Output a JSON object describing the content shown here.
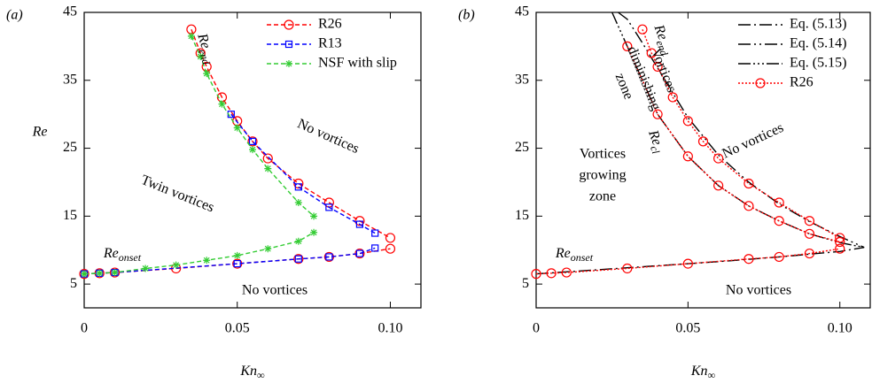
{
  "chart_data": [
    {
      "type": "line",
      "panel": "(a)",
      "x_label": {
        "text": "Kn",
        "sub": "∞"
      },
      "y_label": "Re",
      "xlim": [
        0,
        0.11
      ],
      "ylim": [
        1.5,
        45
      ],
      "xticks": [
        0,
        0.05,
        {
          "value": 0.1,
          "label": "0.10"
        }
      ],
      "yticks": [
        5,
        15,
        25,
        35,
        45
      ],
      "legend": "top-right",
      "series": [
        {
          "name": "R26",
          "color": "#ff0000",
          "marker": "circle",
          "dash": "5 3",
          "x": [
            0,
            0.005,
            0.01,
            0.03,
            0.05,
            0.07,
            0.08,
            0.09,
            0.1,
            null,
            0.035,
            0.038,
            0.04,
            0.045,
            0.05,
            0.055,
            0.06,
            0.07,
            0.08,
            0.09,
            0.1
          ],
          "values": [
            6.5,
            6.6,
            6.7,
            7.3,
            8.0,
            8.7,
            9.0,
            9.5,
            10.2,
            null,
            42.5,
            39,
            37,
            32.5,
            29,
            26,
            23.5,
            19.8,
            17,
            14.3,
            11.8
          ]
        },
        {
          "name": "R13",
          "color": "#0000ff",
          "marker": "square",
          "dash": "5 3",
          "x": [
            0,
            0.005,
            0.01,
            0.05,
            0.07,
            0.08,
            0.09,
            0.095,
            null,
            0.048,
            0.055,
            0.07,
            0.08,
            0.09,
            0.095
          ],
          "values": [
            6.5,
            6.6,
            6.7,
            8.0,
            8.7,
            9.0,
            9.5,
            10.3,
            null,
            30,
            26,
            19.3,
            16.3,
            13.8,
            12.5
          ]
        },
        {
          "name": "NSF with slip",
          "color": "#33cc33",
          "marker": "star",
          "dash": "5 3",
          "x": [
            0,
            0.005,
            0.01,
            0.02,
            0.03,
            0.04,
            0.05,
            0.06,
            0.07,
            0.075,
            null,
            0.035,
            0.038,
            0.04,
            0.045,
            0.05,
            0.055,
            0.06,
            0.07,
            0.075
          ],
          "values": [
            6.5,
            6.6,
            6.7,
            7.3,
            7.8,
            8.5,
            9.2,
            10.2,
            11.3,
            12.6,
            null,
            41.5,
            38.5,
            36,
            31.5,
            28,
            24.8,
            22,
            17,
            15
          ]
        }
      ],
      "annotations": [
        {
          "text": "Twin vortices",
          "color": "#ff0000"
        },
        {
          "text": "No vortices",
          "color": "#0000ff"
        },
        {
          "text": "No vortices",
          "color": "#0000ff"
        },
        {
          "text": "Re",
          "sub": "end",
          "color": "#000000"
        },
        {
          "text": "Re",
          "sub": "onset",
          "color": "#000000"
        }
      ]
    },
    {
      "type": "line",
      "panel": "(b)",
      "x_label": {
        "text": "Kn",
        "sub": "∞"
      },
      "xlim": [
        0,
        0.11
      ],
      "ylim": [
        1.5,
        45
      ],
      "xticks": [
        0,
        0.05,
        {
          "value": 0.1,
          "label": "0.10"
        }
      ],
      "yticks": [
        5,
        15,
        25,
        35,
        45
      ],
      "legend": "top-right",
      "series": [
        {
          "name": "Eq. (5.13)",
          "color": "#000000",
          "marker": "none",
          "dash": "14 4 2 4",
          "x": [
            0,
            0.02,
            0.04,
            0.06,
            0.08,
            0.1,
            0.108
          ],
          "values": [
            6.5,
            7.1,
            7.7,
            8.3,
            9.0,
            9.8,
            10.4
          ]
        },
        {
          "name": "Eq. (5.14)",
          "color": "#000000",
          "marker": "none",
          "dash": "14 4 2 4 2 4",
          "x": [
            0.027,
            0.03,
            0.035,
            0.04,
            0.05,
            0.06,
            0.07,
            0.08,
            0.09,
            0.1,
            0.108
          ],
          "values": [
            45,
            44,
            40.5,
            36.8,
            29.5,
            24,
            20,
            16.8,
            14.2,
            12,
            10.4
          ]
        },
        {
          "name": "Eq. (5.15)",
          "color": "#000000",
          "marker": "none",
          "dash": "14 3 2 3 2 3 2 3",
          "x": [
            0.025,
            0.03,
            0.04,
            0.05,
            0.06,
            0.07,
            0.08,
            0.09,
            0.1,
            0.108
          ],
          "values": [
            45,
            40,
            30,
            23.8,
            19.5,
            16.5,
            14.3,
            12.4,
            11.1,
            10.4
          ]
        },
        {
          "name": "R26",
          "color": "#ff0000",
          "marker": "circle",
          "dash": "2 2",
          "x": [
            0,
            0.005,
            0.01,
            0.03,
            0.05,
            0.07,
            0.08,
            0.09,
            0.1,
            null,
            0.035,
            0.038,
            0.04,
            0.045,
            0.05,
            0.055,
            0.06,
            0.07,
            0.08,
            0.09,
            0.1,
            null,
            0.03,
            0.04,
            0.05,
            0.06,
            0.07,
            0.08,
            0.09,
            0.1
          ],
          "values": [
            6.5,
            6.6,
            6.7,
            7.3,
            8.0,
            8.7,
            9.0,
            9.5,
            10.2,
            null,
            42.5,
            39,
            37,
            32.5,
            29,
            26,
            23.5,
            19.8,
            17,
            14.3,
            11.8,
            null,
            40,
            30,
            23.8,
            19.5,
            16.5,
            14.3,
            12.4,
            11.2
          ]
        }
      ],
      "annotations": [
        {
          "lines": [
            "Vortices",
            "growing",
            "zone"
          ],
          "color": "#ff0000"
        },
        {
          "text": "No vortices",
          "color": "#0000ff"
        },
        {
          "text": "No vortices",
          "color": "#0000ff"
        },
        {
          "text": "Re",
          "sub": "onset",
          "color": "#000000"
        },
        {
          "text": "Re",
          "sub": "end",
          "color": "#000000"
        },
        {
          "lines": [
            "Vortices",
            "diminishing",
            "zone"
          ],
          "color": "#ff0000"
        },
        {
          "text": "Re",
          "sub": "cl",
          "color": "#000000"
        }
      ]
    }
  ]
}
